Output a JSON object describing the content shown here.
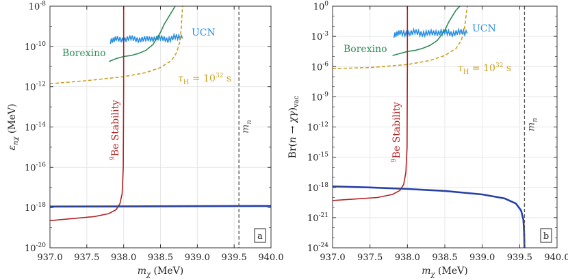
{
  "chart_data": [
    {
      "type": "line",
      "panel_label": "a",
      "xlabel": "m_χ (MeV)",
      "ylabel": "ε_nχ (MeV)",
      "xlim": [
        937.0,
        940.0
      ],
      "ylog": true,
      "ylim_exp": [
        -20,
        -8
      ],
      "x_ticks": [
        "937.0",
        "937.5",
        "938.0",
        "938.5",
        "939.0",
        "939.5",
        "940.0"
      ],
      "y_ticks_exp": [
        "-20",
        "-18",
        "-16",
        "-14",
        "-12",
        "-10",
        "-8"
      ],
      "grid": true,
      "series": [
        {
          "name": "UCN",
          "color": "#2b8fe3",
          "style": "solid-noisy",
          "x": [
            937.82,
            937.9,
            938.0,
            938.1,
            938.2,
            938.3,
            938.4,
            938.5,
            938.6,
            938.7,
            938.8
          ],
          "y_exp": [
            -9.75,
            -9.6,
            -9.7,
            -9.55,
            -9.7,
            -9.6,
            -9.65,
            -9.55,
            -9.7,
            -9.5,
            -9.6
          ]
        },
        {
          "name": "Borexino",
          "color": "#2e8b57",
          "style": "solid",
          "x": [
            937.8,
            937.9,
            938.0,
            938.1,
            938.2,
            938.3,
            938.4,
            938.5,
            938.55,
            938.6,
            938.65,
            938.7
          ],
          "y_exp": [
            -10.75,
            -10.6,
            -10.5,
            -10.45,
            -10.35,
            -10.2,
            -9.9,
            -9.3,
            -8.9,
            -8.6,
            -8.3,
            -8.0
          ]
        },
        {
          "name": "τ_H = 10^32 s",
          "color": "#c8a020",
          "style": "dashed",
          "x": [
            937.0,
            937.5,
            938.0,
            938.3,
            938.5,
            938.65,
            938.72,
            938.76,
            938.78,
            938.8
          ],
          "y_exp": [
            -11.85,
            -11.7,
            -11.5,
            -11.3,
            -11.05,
            -10.7,
            -10.3,
            -9.8,
            -9.2,
            -8.0
          ]
        },
        {
          "name": "9Be Stability",
          "color": "#b22222",
          "style": "solid",
          "x": [
            937.0,
            937.3,
            937.6,
            937.8,
            937.9,
            937.95,
            937.98,
            937.995,
            938.0,
            938.0
          ],
          "y_exp": [
            -18.65,
            -18.55,
            -18.45,
            -18.3,
            -18.1,
            -17.8,
            -17.3,
            -16.0,
            -12.0,
            -8.0
          ]
        },
        {
          "name": "",
          "color": "#1f3fbf",
          "style": "solid-thick",
          "x": [
            937.0,
            938.0,
            939.0,
            940.0
          ],
          "y_exp": [
            -17.95,
            -17.94,
            -17.93,
            -17.92
          ]
        },
        {
          "name": "",
          "color": "#444444",
          "style": "dotted",
          "x": [
            937.0,
            938.0,
            939.0,
            940.0
          ],
          "y_exp": [
            -17.95,
            -17.94,
            -17.93,
            -17.92
          ]
        }
      ],
      "vline": {
        "name": "m_n",
        "x": 939.565,
        "color": "#555555"
      },
      "annotations": {
        "ucn": "UCN",
        "borexino": "Borexino",
        "tau": "τH = 10^32 s",
        "be": "9Be Stability",
        "mn": "mn"
      }
    },
    {
      "type": "line",
      "panel_label": "b",
      "xlabel": "m_χ (MeV)",
      "ylabel": "Br(n → χγ)vac",
      "xlim": [
        937.0,
        940.0
      ],
      "ylog": true,
      "ylim_exp": [
        -24,
        0
      ],
      "x_ticks": [
        "937.0",
        "937.5",
        "938.0",
        "938.5",
        "939.0",
        "939.5",
        "940.0"
      ],
      "y_ticks": [
        "10^-24",
        "10^-21",
        "10^-18",
        "10^-15",
        "10^-12",
        "10^-9",
        "10^-6",
        "10^-3",
        "10^0"
      ],
      "grid": true,
      "series": [
        {
          "name": "UCN",
          "color": "#2b8fe3",
          "style": "solid-noisy",
          "x": [
            937.82,
            937.9,
            938.0,
            938.1,
            938.2,
            938.3,
            938.4,
            938.5,
            938.6,
            938.7,
            938.8
          ],
          "y_exp": [
            -2.9,
            -2.6,
            -2.8,
            -2.5,
            -2.8,
            -2.6,
            -2.7,
            -2.5,
            -2.8,
            -2.5,
            -2.7
          ]
        },
        {
          "name": "Borexino",
          "color": "#2e8b57",
          "style": "solid",
          "x": [
            937.8,
            937.9,
            938.0,
            938.1,
            938.2,
            938.3,
            938.4,
            938.5,
            938.55,
            938.6,
            938.65,
            938.7
          ],
          "y_exp": [
            -4.9,
            -4.7,
            -4.5,
            -4.4,
            -4.2,
            -3.9,
            -3.4,
            -2.4,
            -1.6,
            -1.0,
            -0.4,
            0.0
          ]
        },
        {
          "name": "τ_H = 10^32 s",
          "color": "#c8a020",
          "style": "dashed",
          "x": [
            937.0,
            937.5,
            938.0,
            938.3,
            938.5,
            938.65,
            938.72,
            938.76,
            938.78,
            938.8
          ],
          "y_exp": [
            -6.2,
            -6.1,
            -5.8,
            -5.4,
            -4.9,
            -4.2,
            -3.4,
            -2.4,
            -1.2,
            0.0
          ]
        },
        {
          "name": "9Be Stability",
          "color": "#b22222",
          "style": "solid",
          "x": [
            937.0,
            937.3,
            937.6,
            937.8,
            937.9,
            937.95,
            937.98,
            937.995,
            938.0,
            938.0
          ],
          "y_exp": [
            -19.3,
            -19.15,
            -19.0,
            -18.7,
            -18.3,
            -17.7,
            -16.5,
            -14.0,
            -6.0,
            0.0
          ]
        },
        {
          "name": "",
          "color": "#1f3fbf",
          "style": "solid-thick",
          "x": [
            937.0,
            937.5,
            938.0,
            938.5,
            939.0,
            939.3,
            939.45,
            939.52,
            939.55,
            939.56,
            939.565
          ],
          "y_exp": [
            -17.9,
            -18.0,
            -18.15,
            -18.35,
            -18.7,
            -19.1,
            -19.6,
            -20.3,
            -21.2,
            -22.5,
            -24.0
          ]
        },
        {
          "name": "",
          "color": "#444444",
          "style": "dotted",
          "x": [
            937.0,
            937.5,
            938.0,
            938.5,
            939.0,
            939.3,
            939.45,
            939.52,
            939.55,
            939.56,
            939.565
          ],
          "y_exp": [
            -17.9,
            -18.0,
            -18.15,
            -18.35,
            -18.7,
            -19.1,
            -19.6,
            -20.3,
            -21.2,
            -22.5,
            -24.0
          ]
        }
      ],
      "vline": {
        "name": "m_n",
        "x": 939.565,
        "color": "#555555"
      },
      "annotations": {
        "ucn": "UCN",
        "borexino": "Borexino",
        "tau": "τH = 10^32 s",
        "be": "9Be Stability",
        "mn": "mn"
      }
    }
  ]
}
